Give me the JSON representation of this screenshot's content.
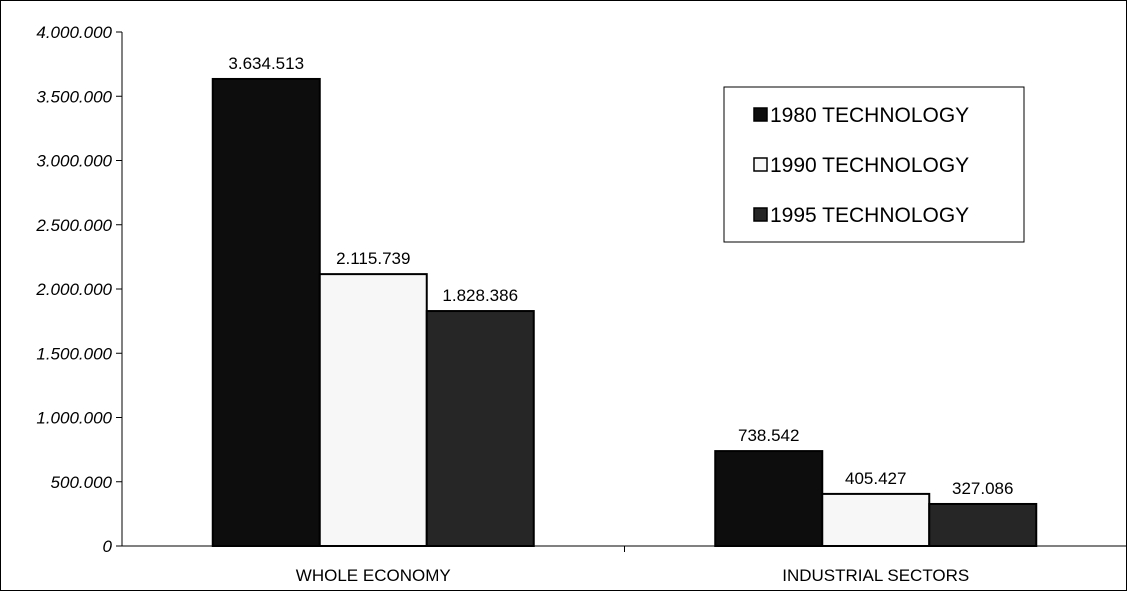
{
  "chart_data": {
    "type": "bar",
    "title": "",
    "xlabel": "",
    "ylabel": "",
    "categories": [
      "WHOLE ECONOMY",
      "INDUSTRIAL SECTORS"
    ],
    "series": [
      {
        "name": "1980 TECHNOLOGY",
        "values": [
          3634513,
          738542
        ],
        "labels": [
          "3.634.513",
          "738.542"
        ],
        "color": "#0d0d0d"
      },
      {
        "name": "1990 TECHNOLOGY",
        "values": [
          2115739,
          405427
        ],
        "labels": [
          "2.115.739",
          "405.427"
        ],
        "color": "#f7f7f7"
      },
      {
        "name": "1995 TECHNOLOGY",
        "values": [
          1828386,
          327086
        ],
        "labels": [
          "1.828.386",
          "327.086"
        ],
        "color": "#262626"
      }
    ],
    "ylim": [
      0,
      4000000
    ],
    "yticks": [
      0,
      500000,
      1000000,
      1500000,
      2000000,
      2500000,
      3000000,
      3500000,
      4000000
    ],
    "ytick_labels": [
      "0",
      "500.000",
      "1.000.000",
      "1.500.000",
      "2.000.000",
      "2.500.000",
      "3.000.000",
      "3.500.000",
      "4.000.000"
    ],
    "grid": false,
    "legend_position": "top-right"
  }
}
